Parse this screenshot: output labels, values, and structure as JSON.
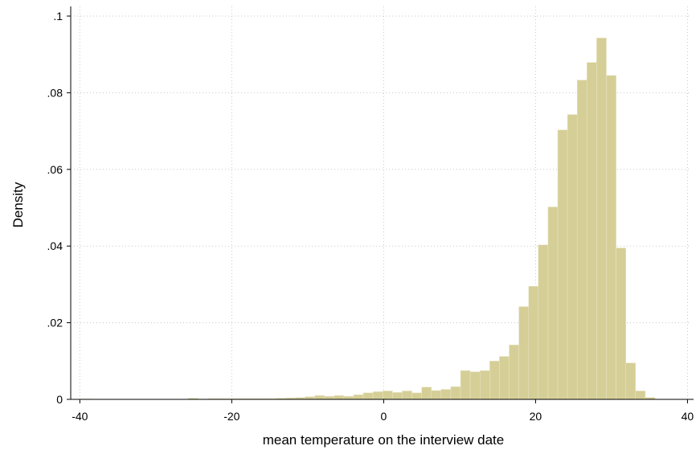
{
  "chart_data": {
    "type": "histogram",
    "xlabel": "mean temperature on the interview date",
    "ylabel": "Density",
    "color": "#d5cf97",
    "bins": [
      -39.8,
      -38.52,
      -37.24,
      -35.96,
      -34.68,
      -33.4,
      -32.12,
      -30.84,
      -29.56,
      -28.28,
      -27,
      -25.72,
      -24.44,
      -23.16,
      -21.88,
      -20.6,
      -19.32,
      -18.04,
      -16.76,
      -15.48,
      -14.2,
      -12.92,
      -11.64,
      -10.36,
      -9.08,
      -7.8,
      -6.52,
      -5.24,
      -3.96,
      -2.68,
      -1.4,
      -0.12,
      1.16,
      2.44,
      3.72,
      5,
      6.28,
      7.56,
      8.84,
      10.12,
      11.4,
      12.68,
      13.96,
      15.24,
      16.52,
      17.8,
      19.08,
      20.36,
      21.64,
      22.92,
      24.2,
      25.48,
      26.76,
      28.04,
      29.32,
      30.6,
      31.88,
      33.16,
      34.44,
      35.72
    ],
    "values": [
      0.0001,
      0,
      0,
      0,
      0,
      0,
      0,
      0,
      0,
      0,
      0,
      0.0003,
      0.0001,
      0.0002,
      0.0002,
      0.0002,
      0.0002,
      0.0002,
      0.0002,
      0.0002,
      0.0003,
      0.0004,
      0.0005,
      0.0007,
      0.001,
      0.0008,
      0.001,
      0.0008,
      0.0012,
      0.0017,
      0.002,
      0.0022,
      0.0018,
      0.0022,
      0.0017,
      0.0032,
      0.0023,
      0.0026,
      0.0033,
      0.0075,
      0.0072,
      0.0075,
      0.01,
      0.0112,
      0.0142,
      0.0242,
      0.0295,
      0.0403,
      0.0502,
      0.0703,
      0.0743,
      0.0833,
      0.0879,
      0.0943,
      0.0845,
      0.0395,
      0.0095,
      0.0022,
      0.0005
    ],
    "xlim": [
      -41.2,
      40.8
    ],
    "xticks": [
      -40,
      -20,
      0,
      20,
      40
    ],
    "ylim": [
      0,
      0.1
    ],
    "yticks": [
      0,
      {
        "value": 0.02,
        "label": ".02"
      },
      {
        "value": 0.04,
        "label": ".04"
      },
      {
        "value": 0.06,
        "label": ".06"
      },
      {
        "value": 0.08,
        "label": ".08"
      },
      {
        "value": 0.1,
        "label": ".1"
      }
    ],
    "grid": true
  }
}
